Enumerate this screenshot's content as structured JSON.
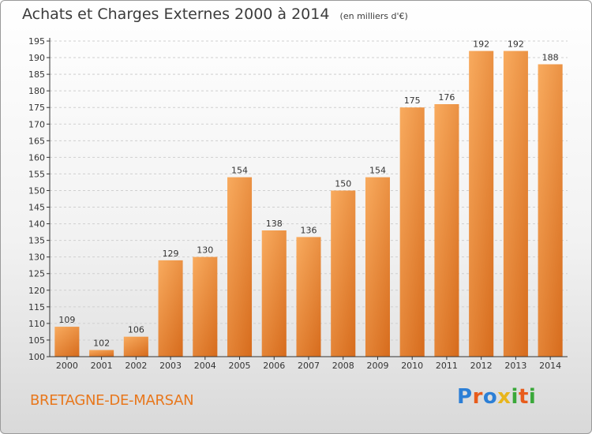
{
  "header": {
    "title": "Achats et Charges Externes 2000 à 2014",
    "subtitle": "(en milliers d'€)"
  },
  "footer": {
    "place": "BRETAGNE-DE-MARSAN",
    "logo_letters": [
      "P",
      "r",
      "o",
      "x",
      "i",
      "t",
      "i"
    ],
    "logo_colors": [
      "#2c7fd6",
      "#e85c1c",
      "#2c7fd6",
      "#e8b51c",
      "#3aa83a",
      "#e85c1c",
      "#3aa83a"
    ]
  },
  "colors": {
    "bar_light": "#f7a85a",
    "bar_dark": "#d9701f",
    "grid": "#cfcfcf",
    "axis": "#333333"
  },
  "chart_data": {
    "type": "bar",
    "title": "Achats et Charges Externes 2000 à 2014",
    "subtitle": "(en milliers d'€)",
    "categories": [
      "2000",
      "2001",
      "2002",
      "2003",
      "2004",
      "2005",
      "2006",
      "2007",
      "2008",
      "2009",
      "2010",
      "2011",
      "2012",
      "2013",
      "2014"
    ],
    "values": [
      109,
      102,
      106,
      129,
      130,
      154,
      138,
      136,
      150,
      154,
      175,
      176,
      192,
      192,
      188
    ],
    "ylim": [
      100,
      195
    ],
    "yticks": [
      100,
      105,
      110,
      115,
      120,
      125,
      130,
      135,
      140,
      145,
      150,
      155,
      160,
      165,
      170,
      175,
      180,
      185,
      190,
      195
    ],
    "grid": true,
    "data_labels": true
  }
}
